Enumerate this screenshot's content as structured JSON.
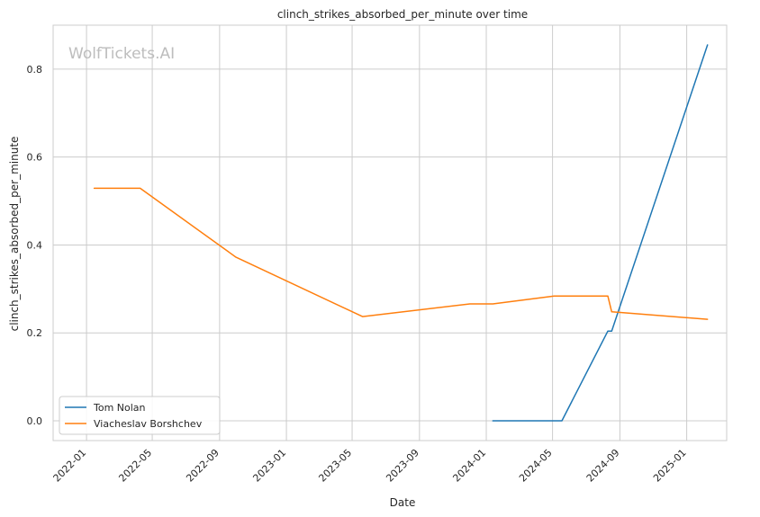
{
  "chart_data": {
    "type": "line",
    "title": "clinch_strikes_absorbed_per_minute over time",
    "xlabel": "Date",
    "ylabel": "clinch_strikes_absorbed_per_minute",
    "watermark": "WolfTickets.AI",
    "x_ticks": [
      "2022-01",
      "2022-05",
      "2022-09",
      "2023-01",
      "2023-05",
      "2023-09",
      "2024-01",
      "2024-05",
      "2024-09",
      "2025-01"
    ],
    "y_ticks": [
      "0.0",
      "0.2",
      "0.4",
      "0.6",
      "0.8"
    ],
    "xlim": [
      "2021-11-01",
      "2025-03-15"
    ],
    "ylim": [
      -0.045,
      0.9
    ],
    "grid": true,
    "legend_position": "lower-left",
    "series": [
      {
        "name": "Tom Nolan",
        "color": "#1f77b4",
        "points": [
          [
            "2024-01-13",
            0.0
          ],
          [
            "2024-05-18",
            0.0
          ],
          [
            "2024-08-10",
            0.204
          ],
          [
            "2024-08-17",
            0.204
          ],
          [
            "2025-02-08",
            0.855
          ]
        ]
      },
      {
        "name": "Viacheslav Borshchev",
        "color": "#ff7f0e",
        "points": [
          [
            "2022-01-15",
            0.529
          ],
          [
            "2022-04-09",
            0.529
          ],
          [
            "2022-10-01",
            0.372
          ],
          [
            "2023-05-20",
            0.237
          ],
          [
            "2023-12-02",
            0.266
          ],
          [
            "2024-01-13",
            0.266
          ],
          [
            "2024-05-04",
            0.284
          ],
          [
            "2024-08-10",
            0.284
          ],
          [
            "2024-08-17",
            0.248
          ],
          [
            "2025-02-08",
            0.231
          ]
        ]
      }
    ]
  }
}
